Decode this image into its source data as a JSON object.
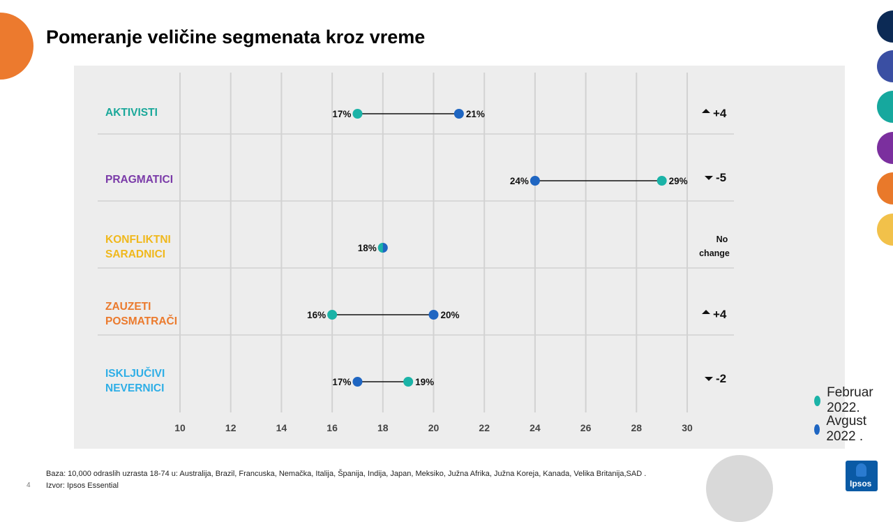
{
  "title": "Pomeranje veličine segmenata kroz vreme",
  "colors": {
    "feb": "#1bb3a7",
    "aug": "#1f66c2",
    "grid": "#d2d2d2",
    "panel": "#ededed"
  },
  "chart_data": {
    "type": "dumbbell",
    "xlim": [
      10,
      30
    ],
    "x_ticks": [
      10,
      12,
      14,
      16,
      18,
      20,
      22,
      24,
      26,
      28,
      30
    ],
    "series": [
      {
        "name": "Februar 2022.",
        "color": "#1bb3a7"
      },
      {
        "name": "Avgust 2022 .",
        "color": "#1f66c2"
      }
    ],
    "rows": [
      {
        "label": [
          "AKTIVISTI"
        ],
        "label_color": "#1aa89a",
        "feb": 17,
        "aug": 21,
        "feb_label": "17%",
        "aug_label": "21%",
        "change_arrow": "up",
        "change": "+4"
      },
      {
        "label": [
          "PRAGMATICI"
        ],
        "label_color": "#7a3aa8",
        "feb": 29,
        "aug": 24,
        "feb_label": "29%",
        "aug_label": "24%",
        "change_arrow": "down",
        "change": "-5"
      },
      {
        "label": [
          "KONFLIKTNI",
          "SARADNICI"
        ],
        "label_color": "#f0b81c",
        "feb": 18,
        "aug": 18,
        "feb_label": "18%",
        "aug_label": "",
        "change_arrow": "",
        "change": "No change"
      },
      {
        "label": [
          "ZAUZETI",
          "POSMATRAČI"
        ],
        "label_color": "#eb7a2d",
        "feb": 16,
        "aug": 20,
        "feb_label": "16%",
        "aug_label": "20%",
        "change_arrow": "up",
        "change": "+4"
      },
      {
        "label": [
          "ISKLJUČIVI",
          "NEVERNICI"
        ],
        "label_color": "#2eaee6",
        "feb": 19,
        "aug": 17,
        "feb_label": "19%",
        "aug_label": "17%",
        "change_arrow": "down",
        "change": "-2"
      }
    ]
  },
  "legend": [
    {
      "label": "Februar 2022.",
      "color": "#1bb3a7"
    },
    {
      "label": "Avgust 2022 .",
      "color": "#1f66c2"
    }
  ],
  "footnote": {
    "base": "Baza: 10,000 odraslih uzrasta 18-74 u: Australija, Brazil, Francuska, Nemačka, Italija, Španija, Indija, Japan, Meksiko, Južna Afrika, Južna Koreja, Kanada, Velika Britanija,SAD .",
    "source": "Izvor: Ipsos Essential"
  },
  "page_number": "4",
  "logo_text": "Ipsos",
  "decor_circles": [
    "#0c2a55",
    "#3a4fa3",
    "#16a89e",
    "#7b2f9e",
    "#e9792a",
    "#f2c14a",
    "#d9d9d9",
    "#ec7a2e"
  ]
}
